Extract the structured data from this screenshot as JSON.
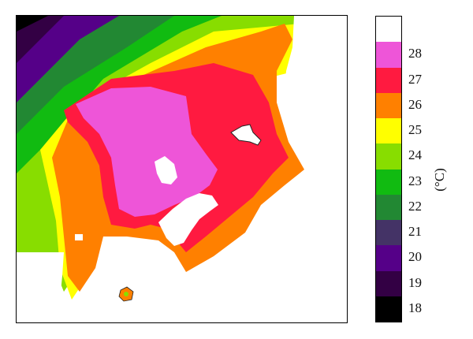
{
  "chart_data": {
    "type": "heatmap",
    "title": "",
    "colorbar": {
      "unit": "(°C)",
      "levels": [
        {
          "label": "",
          "color": "#ffffff"
        },
        {
          "label": "28",
          "color": "#ee55d8"
        },
        {
          "label": "27",
          "color": "#ff1a40"
        },
        {
          "label": "26",
          "color": "#ff8000"
        },
        {
          "label": "25",
          "color": "#ffff00"
        },
        {
          "label": "24",
          "color": "#88dd00"
        },
        {
          "label": "23",
          "color": "#11bb11"
        },
        {
          "label": "22",
          "color": "#228833"
        },
        {
          "label": "21",
          "color": "#443366"
        },
        {
          "label": "20",
          "color": "#550088"
        },
        {
          "label": "19",
          "color": "#330044"
        },
        {
          "label": "18",
          "color": "#000000"
        }
      ]
    }
  }
}
